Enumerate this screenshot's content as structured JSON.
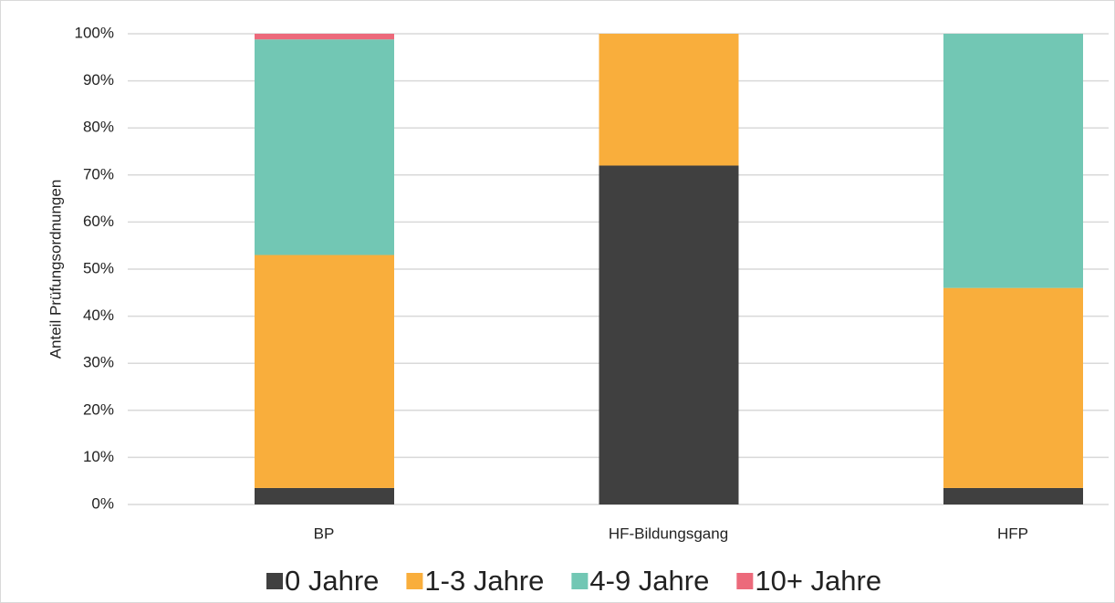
{
  "chart_data": {
    "type": "stacked_bar",
    "y_label": "Anteil Prüfungsordnungen",
    "categories": [
      "BP",
      "HF-Bildungsgang",
      "HFP"
    ],
    "series": [
      {
        "name": "0 Jahre",
        "color": "#404040",
        "values": [
          3.5,
          72,
          3.5
        ]
      },
      {
        "name": "1-3 Jahre",
        "color": "#f9ae3c",
        "values": [
          49.5,
          28,
          42.5
        ]
      },
      {
        "name": "4-9 Jahre",
        "color": "#72c7b4",
        "values": [
          45.8,
          0,
          54
        ]
      },
      {
        "name": "10+ Jahre",
        "color": "#ec6a7b",
        "values": [
          1.2,
          0,
          0
        ]
      }
    ],
    "ylim": [
      0,
      100
    ],
    "yticks": [
      {
        "value": 0,
        "label": "0%"
      },
      {
        "value": 10,
        "label": "10%"
      },
      {
        "value": 20,
        "label": "20%"
      },
      {
        "value": 30,
        "label": "30%"
      },
      {
        "value": 40,
        "label": "40%"
      },
      {
        "value": 50,
        "label": "50%"
      },
      {
        "value": 60,
        "label": "60%"
      },
      {
        "value": 70,
        "label": "70%"
      },
      {
        "value": 80,
        "label": "80%"
      },
      {
        "value": 90,
        "label": "90%"
      },
      {
        "value": 100,
        "label": "100%"
      }
    ],
    "grid": true,
    "legend": "bottom"
  }
}
